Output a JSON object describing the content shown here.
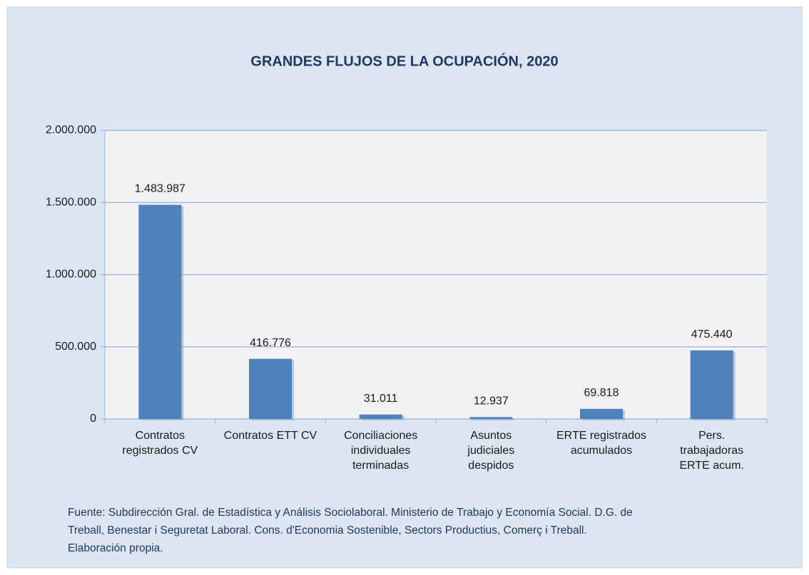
{
  "chart_data": {
    "type": "bar",
    "title": "GRANDES FLUJOS DE LA OCUPACIÓN, 2020",
    "categories": [
      "Contratos\nregistrados CV",
      "Contratos ETT CV",
      "Conciliaciones\nindividuales\nterminadas",
      "Asuntos\njudiciales\ndespidos",
      "ERTE registrados\nacumulados",
      "Pers.\ntrabajadoras\nERTE acum."
    ],
    "values": [
      1483987,
      416776,
      31011,
      12937,
      69818,
      475440
    ],
    "value_labels": [
      "1.483.987",
      "416.776",
      "31.011",
      "12.937",
      "69.818",
      "475.440"
    ],
    "color": "#4f81bd",
    "ylim": [
      0,
      2000000
    ],
    "yticks": [
      0,
      {
        "value": 500000,
        "label": "500.000"
      },
      {
        "value": 1000000,
        "label": "1.000.000"
      },
      {
        "value": 1500000,
        "label": "1.500.000"
      },
      {
        "value": 2000000,
        "label": "2.000.000"
      }
    ],
    "grid": true,
    "source": [
      "Fuente: Subdirección Gral. de Estadística y Análisis Sociolaboral. Ministerio de Trabajo y Economía Social. D.G. de",
      "Treball, Benestar i Seguretat Laboral. Cons. d'Economia Sostenible, Sectors Productius, Comerç i Treball.",
      "Elaboración propia."
    ]
  }
}
